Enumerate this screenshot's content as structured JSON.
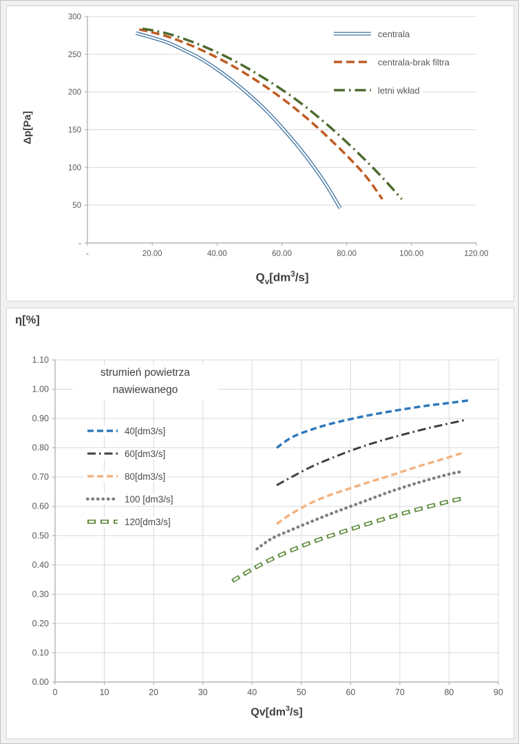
{
  "window": {
    "background": "#f1f1f1",
    "panel_background": "#ffffff",
    "panel_border": "#d4d4d4"
  },
  "colors": {
    "grid": "#d9d9d9",
    "axis": "#a6a6a6",
    "tick_text": "#595959",
    "label_text": "#3f3f3f"
  },
  "chart_data": [
    {
      "type": "line",
      "title": "",
      "xlabel": "Qv[dm3/s]",
      "xlabel_parts": [
        {
          "t": "Q"
        },
        {
          "t": "v",
          "style": "sub"
        },
        {
          "t": "[dm"
        },
        {
          "t": "3",
          "style": "sup"
        },
        {
          "t": "/s]"
        }
      ],
      "ylabel": "Δp[Pa]",
      "xlim": [
        0,
        120
      ],
      "ylim": [
        0,
        300
      ],
      "xtick_vals": [
        0,
        20,
        40,
        60,
        80,
        100,
        120
      ],
      "xtick_labels": [
        "-",
        "20.00",
        "40.00",
        "60.00",
        "80.00",
        "100.00",
        "120.00"
      ],
      "ytick_vals": [
        0,
        50,
        100,
        150,
        200,
        250,
        300
      ],
      "ytick_labels": [
        "-",
        "50",
        "100",
        "150",
        "200",
        "250",
        "300"
      ],
      "grid": "horizontal",
      "legend_position": "top-right",
      "series": [
        {
          "name": "centrala",
          "color": "#3a6fa0",
          "style": "double",
          "width": 5,
          "x": [
            15,
            20,
            25,
            30,
            35,
            40,
            45,
            50,
            55,
            60,
            65,
            70,
            74,
            78
          ],
          "y": [
            278,
            272,
            265,
            255,
            244,
            230,
            214,
            196,
            176,
            153,
            128,
            100,
            75,
            46
          ]
        },
        {
          "name": "centrala-brak filtra",
          "color": "#c05a21",
          "style": "dashed-long",
          "width": 3.5,
          "x": [
            16,
            25,
            35,
            45,
            55,
            65,
            75,
            85,
            91
          ],
          "y": [
            283,
            273,
            256,
            234,
            207,
            175,
            137,
            93,
            58
          ]
        },
        {
          "name": "letni wkład",
          "color": "#4c6a2d",
          "style": "dashdot-long",
          "width": 3.5,
          "x": [
            17,
            25,
            35,
            45,
            55,
            65,
            75,
            85,
            92,
            97
          ],
          "y": [
            284,
            277,
            262,
            242,
            217,
            188,
            153,
            113,
            82,
            58
          ]
        }
      ]
    },
    {
      "type": "line",
      "title": "η[%]",
      "xlabel": "Qv[dm3/s]",
      "xlabel_parts": [
        {
          "t": "Qv[dm"
        },
        {
          "t": "3",
          "style": "sup"
        },
        {
          "t": "/s]"
        }
      ],
      "ylabel": "η[%]",
      "xlim": [
        0,
        90
      ],
      "ylim": [
        0,
        1.1
      ],
      "xtick_vals": [
        0,
        10,
        20,
        30,
        40,
        50,
        60,
        70,
        80,
        90
      ],
      "xtick_labels": [
        "0",
        "10",
        "20",
        "30",
        "40",
        "50",
        "60",
        "70",
        "80",
        "90"
      ],
      "ytick_vals": [
        0,
        0.1,
        0.2,
        0.3,
        0.4,
        0.5,
        0.6,
        0.7,
        0.8,
        0.9,
        1.0,
        1.1
      ],
      "ytick_labels": [
        "0.00",
        "0.10",
        "0.20",
        "0.30",
        "0.40",
        "0.50",
        "0.60",
        "0.70",
        "0.80",
        "0.90",
        "1.00",
        "1.10"
      ],
      "grid": "both",
      "legend_position": "upper-left",
      "legend_title_lines": [
        "strumień powietrza",
        "nawiewanego"
      ],
      "series": [
        {
          "name": "40[dm3/s]",
          "color": "#2e79bd",
          "style": "dashed",
          "width": 3.5,
          "x": [
            45,
            48,
            52,
            56,
            60,
            64,
            68,
            72,
            76,
            80,
            84
          ],
          "y": [
            0.8,
            0.835,
            0.862,
            0.882,
            0.898,
            0.912,
            0.924,
            0.935,
            0.945,
            0.953,
            0.962
          ]
        },
        {
          "name": "60[dm3/s]",
          "color": "#3f3f3f",
          "style": "dashdot",
          "width": 3,
          "x": [
            45,
            48,
            52,
            56,
            60,
            64,
            68,
            72,
            76,
            80,
            83
          ],
          "y": [
            0.672,
            0.7,
            0.735,
            0.764,
            0.79,
            0.813,
            0.833,
            0.851,
            0.868,
            0.883,
            0.894
          ]
        },
        {
          "name": "80[dm3/s]",
          "color": "#f2b280",
          "style": "dashed",
          "width": 3.5,
          "x": [
            45,
            48,
            52,
            56,
            60,
            64,
            68,
            72,
            76,
            80,
            83
          ],
          "y": [
            0.54,
            0.575,
            0.612,
            0.64,
            0.662,
            0.684,
            0.705,
            0.727,
            0.748,
            0.768,
            0.784
          ]
        },
        {
          "name": "100 [dm3/s]",
          "color": "#808080",
          "style": "dotted",
          "width": 4.5,
          "x": [
            41,
            44,
            48,
            52,
            56,
            60,
            64,
            68,
            72,
            76,
            80,
            83
          ],
          "y": [
            0.455,
            0.49,
            0.52,
            0.548,
            0.575,
            0.6,
            0.625,
            0.65,
            0.672,
            0.692,
            0.71,
            0.72
          ]
        },
        {
          "name": "120[dm3/s]",
          "color": "#5c8a3a",
          "style": "hollow-dash",
          "width": 6,
          "x": [
            36,
            40,
            44,
            48,
            52,
            56,
            60,
            64,
            68,
            72,
            76,
            80,
            83
          ],
          "y": [
            0.345,
            0.385,
            0.42,
            0.45,
            0.477,
            0.5,
            0.522,
            0.543,
            0.563,
            0.582,
            0.6,
            0.617,
            0.628
          ]
        }
      ]
    }
  ]
}
